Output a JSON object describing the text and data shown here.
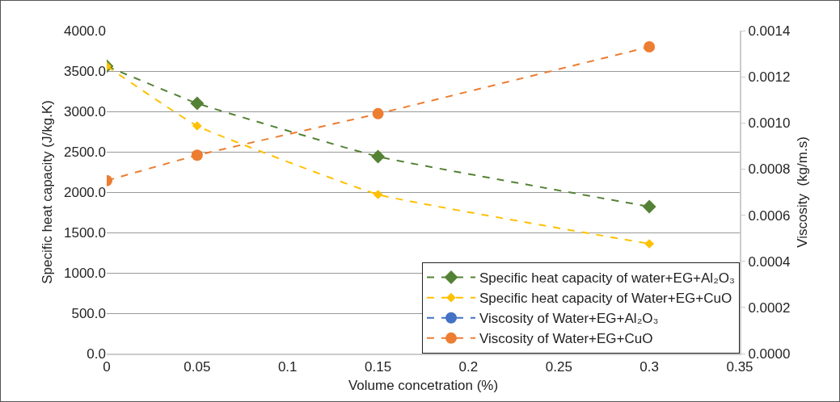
{
  "chart_data": {
    "type": "line",
    "xlabel": "Volume concetration (%)",
    "ylabel": "Specific heat capacity (J/kg.K)",
    "y2label": "Viscosity  (kg/m.s)",
    "x": [
      0,
      0.05,
      0.15,
      0.3
    ],
    "xlim": [
      0,
      0.35
    ],
    "xticks": [
      0,
      0.05,
      0.1,
      0.15,
      0.2,
      0.25,
      0.3,
      0.35
    ],
    "ylim": [
      0,
      4000
    ],
    "yticks": [
      {
        "value": 0,
        "label": "0.0"
      },
      {
        "value": 500,
        "label": "500.0"
      },
      {
        "value": 1000,
        "label": "1000.0"
      },
      {
        "value": 1500,
        "label": "1500.0"
      },
      {
        "value": 2000,
        "label": "2000.0"
      },
      {
        "value": 2500,
        "label": "2500.0"
      },
      {
        "value": 3000,
        "label": "3000.0"
      },
      {
        "value": 3500,
        "label": "3500.0"
      },
      {
        "value": 4000,
        "label": "4000.0"
      }
    ],
    "y2lim": [
      0,
      0.0014
    ],
    "y2ticks": [
      {
        "value": 0,
        "label": "0.0000"
      },
      {
        "value": 0.0002,
        "label": "0.0002"
      },
      {
        "value": 0.0004,
        "label": "0.0004"
      },
      {
        "value": 0.0006,
        "label": "0.0006"
      },
      {
        "value": 0.0008,
        "label": "0.0008"
      },
      {
        "value": 0.001,
        "label": "0.0010"
      },
      {
        "value": 0.0012,
        "label": "0.0012"
      },
      {
        "value": 0.0014,
        "label": "0.0014"
      }
    ],
    "grid": "y",
    "legend": "bottom right",
    "line_style": "dashed",
    "series": [
      {
        "name": "Specific heat capacity of water+EG+Al₂O₃",
        "color": "#548235",
        "marker": "diamond",
        "values": [
          3560,
          3100,
          2440,
          1820
        ]
      },
      {
        "name": "Specific heat capacity of Water+EG+CuO",
        "color": "#ffc000",
        "marker": "diamond",
        "values": [
          3560,
          2820,
          1970,
          1360
        ]
      },
      {
        "name": "Viscosity of Water+EG+Al₂O₃",
        "color": "#4472c4",
        "marker": "circle",
        "axis": "y2",
        "values": [
          null,
          null,
          null,
          null
        ]
      },
      {
        "name": "Viscosity of Water+EG+CuO",
        "color": "#ed7d31",
        "marker": "circle",
        "axis": "y2",
        "values": [
          0.00075,
          0.00086,
          0.00104,
          0.00133
        ]
      }
    ]
  }
}
